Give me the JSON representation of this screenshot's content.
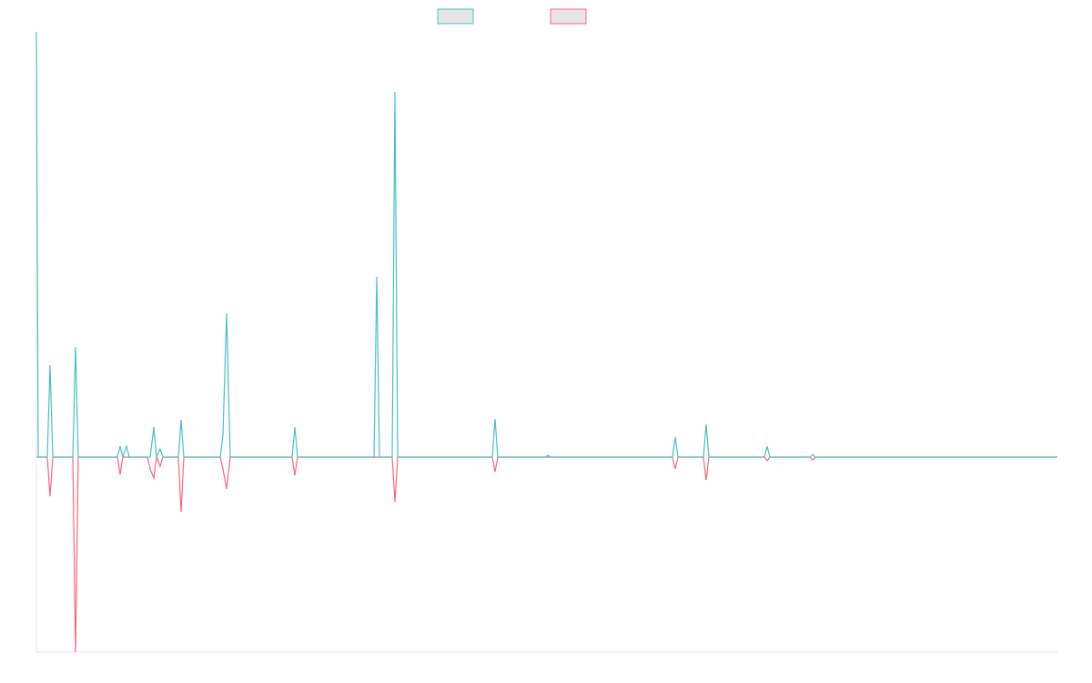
{
  "chart_data": {
    "type": "line",
    "x": [
      0,
      2,
      12,
      15,
      18,
      40,
      43,
      46,
      89,
      92,
      95,
      99,
      102,
      122,
      125,
      129,
      132,
      136,
      139,
      156,
      159,
      162,
      202,
      205,
      209,
      213,
      216,
      281,
      284,
      287,
      371,
      374,
      377,
      391,
      394,
      397,
      501,
      504,
      507,
      559,
      562,
      565,
      699,
      702,
      705,
      733,
      736,
      739,
      800,
      803,
      806,
      850,
      853,
      856,
      1122
    ],
    "series": [
      {
        "color": "#4bc0c0",
        "values": [
          467,
          0,
          0,
          101,
          0,
          0,
          121,
          0,
          0,
          12,
          0,
          12,
          0,
          0,
          0,
          33,
          0,
          9,
          0,
          0,
          41,
          0,
          0,
          25,
          158,
          0,
          0,
          0,
          33,
          0,
          0,
          198,
          0,
          0,
          401,
          0,
          0,
          42,
          0,
          0,
          2,
          0,
          0,
          22,
          0,
          0,
          36,
          0,
          0,
          12,
          0,
          0,
          3,
          0,
          0
        ]
      },
      {
        "color": "#ff6384",
        "values": [
          0,
          0,
          0,
          -43,
          0,
          0,
          -214,
          0,
          0,
          -19,
          0,
          0,
          0,
          0,
          -13,
          -23,
          0,
          -10,
          0,
          0,
          -60,
          0,
          0,
          -13,
          -35,
          0,
          0,
          0,
          -20,
          0,
          0,
          0,
          0,
          0,
          -49,
          0,
          0,
          -16,
          0,
          0,
          0,
          0,
          0,
          -13,
          0,
          0,
          -25,
          0,
          0,
          -4,
          0,
          0,
          -3,
          0,
          0
        ]
      }
    ],
    "xlim": [
      0,
      1122
    ],
    "ylim": [
      -214,
      467
    ]
  }
}
